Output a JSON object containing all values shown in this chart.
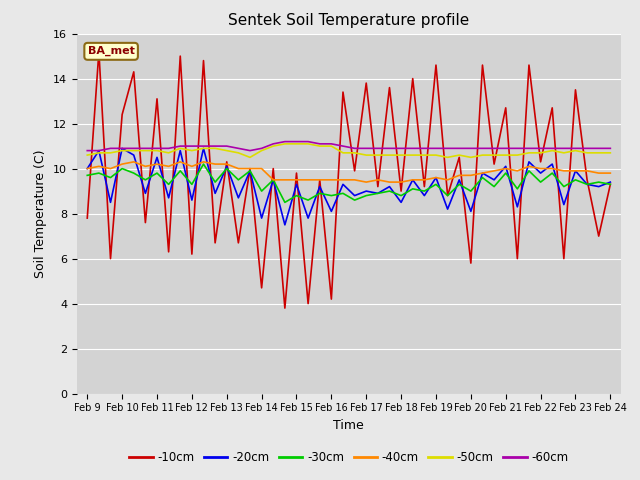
{
  "title": "Sentek Soil Temperature profile",
  "xlabel": "Time",
  "ylabel": "Soil Temperature (C)",
  "ylim": [
    0,
    16
  ],
  "yticks": [
    0,
    2,
    4,
    6,
    8,
    10,
    12,
    14,
    16
  ],
  "x_labels": [
    "Feb 9",
    "Feb 10",
    "Feb 11",
    "Feb 12",
    "Feb 13",
    "Feb 14",
    "Feb 15",
    "Feb 16",
    "Feb 17",
    "Feb 18",
    "Feb 19",
    "Feb 20",
    "Feb 21",
    "Feb 22",
    "Feb 23",
    "Feb 24"
  ],
  "annotation_text": "BA_met",
  "fig_bg": "#e8e8e8",
  "plot_bg": "#d3d3d3",
  "grid_color": "#ffffff",
  "series": {
    "-10cm": {
      "color": "#cc0000",
      "linewidth": 1.2,
      "values": [
        7.8,
        15.2,
        6.0,
        12.4,
        14.3,
        7.6,
        13.1,
        6.3,
        15.0,
        6.2,
        14.8,
        6.7,
        10.3,
        6.7,
        10.0,
        4.7,
        10.0,
        3.8,
        9.8,
        4.0,
        9.5,
        4.2,
        13.4,
        9.9,
        13.8,
        9.2,
        13.6,
        9.0,
        14.0,
        9.2,
        14.6,
        8.8,
        10.5,
        5.8,
        14.6,
        10.2,
        12.7,
        6.0,
        14.6,
        10.3,
        12.7,
        6.0,
        13.5,
        9.5,
        7.0,
        9.3
      ]
    },
    "-20cm": {
      "color": "#0000ee",
      "linewidth": 1.2,
      "values": [
        10.0,
        10.8,
        8.5,
        10.9,
        10.6,
        8.9,
        10.5,
        8.7,
        10.8,
        8.6,
        10.9,
        8.9,
        10.1,
        8.7,
        9.9,
        7.8,
        9.5,
        7.5,
        9.3,
        7.8,
        9.2,
        8.1,
        9.3,
        8.8,
        9.0,
        8.9,
        9.2,
        8.5,
        9.5,
        8.8,
        9.6,
        8.2,
        9.5,
        8.1,
        9.8,
        9.5,
        10.1,
        8.3,
        10.3,
        9.8,
        10.2,
        8.4,
        9.9,
        9.3,
        9.2,
        9.4
      ]
    },
    "-30cm": {
      "color": "#00cc00",
      "linewidth": 1.2,
      "values": [
        9.7,
        9.8,
        9.6,
        10.0,
        9.8,
        9.5,
        9.8,
        9.3,
        9.9,
        9.3,
        10.2,
        9.4,
        10.0,
        9.5,
        9.9,
        9.0,
        9.5,
        8.5,
        8.8,
        8.6,
        8.9,
        8.8,
        8.9,
        8.6,
        8.8,
        8.9,
        9.0,
        8.8,
        9.1,
        9.0,
        9.3,
        8.8,
        9.3,
        9.0,
        9.6,
        9.2,
        9.8,
        9.1,
        9.9,
        9.4,
        9.8,
        9.2,
        9.5,
        9.3,
        9.4,
        9.3
      ]
    },
    "-40cm": {
      "color": "#ff8800",
      "linewidth": 1.2,
      "values": [
        10.0,
        10.1,
        10.0,
        10.2,
        10.3,
        10.1,
        10.2,
        10.1,
        10.3,
        10.1,
        10.3,
        10.2,
        10.2,
        10.0,
        10.0,
        10.0,
        9.5,
        9.5,
        9.5,
        9.5,
        9.5,
        9.5,
        9.5,
        9.5,
        9.4,
        9.5,
        9.4,
        9.4,
        9.5,
        9.5,
        9.6,
        9.5,
        9.7,
        9.7,
        9.8,
        9.9,
        10.0,
        9.9,
        10.1,
        10.0,
        10.0,
        9.9,
        9.9,
        9.9,
        9.8,
        9.8
      ]
    },
    "-50cm": {
      "color": "#dddd00",
      "linewidth": 1.2,
      "values": [
        10.6,
        10.7,
        10.7,
        10.8,
        10.8,
        10.8,
        10.8,
        10.7,
        10.9,
        10.8,
        10.9,
        10.9,
        10.8,
        10.7,
        10.5,
        10.8,
        11.0,
        11.1,
        11.1,
        11.1,
        11.0,
        11.0,
        10.7,
        10.7,
        10.6,
        10.6,
        10.6,
        10.6,
        10.6,
        10.6,
        10.6,
        10.5,
        10.6,
        10.5,
        10.6,
        10.6,
        10.6,
        10.6,
        10.7,
        10.7,
        10.8,
        10.7,
        10.8,
        10.7,
        10.7,
        10.7
      ]
    },
    "-60cm": {
      "color": "#aa00aa",
      "linewidth": 1.2,
      "values": [
        10.8,
        10.8,
        10.9,
        10.9,
        10.9,
        10.9,
        10.9,
        10.9,
        11.0,
        11.0,
        11.0,
        11.0,
        11.0,
        10.9,
        10.8,
        10.9,
        11.1,
        11.2,
        11.2,
        11.2,
        11.1,
        11.1,
        11.0,
        10.9,
        10.9,
        10.9,
        10.9,
        10.9,
        10.9,
        10.9,
        10.9,
        10.9,
        10.9,
        10.9,
        10.9,
        10.9,
        10.9,
        10.9,
        10.9,
        10.9,
        10.9,
        10.9,
        10.9,
        10.9,
        10.9,
        10.9
      ]
    }
  },
  "legend_colors": [
    "#cc0000",
    "#0000ee",
    "#00cc00",
    "#ff8800",
    "#dddd00",
    "#aa00aa"
  ],
  "legend_labels": [
    "-10cm",
    "-20cm",
    "-30cm",
    "-40cm",
    "-50cm",
    "-60cm"
  ]
}
